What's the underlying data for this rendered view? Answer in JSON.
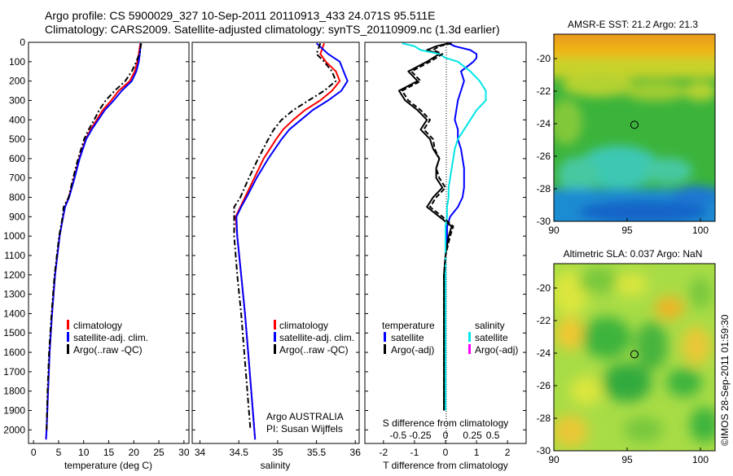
{
  "header": {
    "line1": "Argo profile: CS 5900029_327 10-Sep-2011 20110913_433 24.071S 95.511E",
    "line2": "Climatology: CARS2009. Satellite-adjusted climatology: synTS_20110909.nc (1.3d earlier)"
  },
  "colors": {
    "climatology": "#ff0000",
    "satellite": "#0000ff",
    "argo": "#000000",
    "sal_satellite": "#00e5e5",
    "sal_argo": "#ff00ff"
  },
  "chart_data": [
    {
      "type": "line",
      "id": "temperature",
      "xlabel": "temperature (deg C)",
      "xlim": [
        -1,
        31
      ],
      "ylim": [
        2070,
        0
      ],
      "xticks": [
        0,
        5,
        10,
        15,
        20,
        25,
        30
      ],
      "yticks": [
        0,
        100,
        200,
        300,
        400,
        500,
        600,
        700,
        800,
        900,
        1000,
        1100,
        1200,
        1300,
        1400,
        1500,
        1600,
        1700,
        1800,
        1900,
        2000
      ],
      "depth": [
        5,
        60,
        100,
        150,
        200,
        250,
        300,
        350,
        400,
        450,
        500,
        600,
        700,
        800,
        850,
        900,
        1000,
        1200,
        1400,
        1600,
        1800,
        2000,
        2050
      ],
      "series": [
        {
          "name": "climatology",
          "values": [
            21.3,
            21.0,
            20.7,
            20.2,
            19.2,
            17.0,
            15.5,
            13.8,
            12.6,
            11.4,
            10.4,
            9.1,
            8.1,
            7.0,
            6.3,
            5.9,
            5.2,
            4.3,
            3.7,
            3.2,
            2.9,
            2.6,
            2.5
          ]
        },
        {
          "name": "satellite-adj. clim.",
          "values": [
            21.4,
            21.2,
            21.0,
            20.5,
            19.6,
            17.6,
            16.0,
            14.2,
            12.9,
            11.6,
            10.5,
            9.2,
            8.2,
            7.1,
            6.3,
            5.9,
            5.2,
            4.3,
            3.7,
            3.2,
            2.9,
            2.6,
            2.5
          ]
        },
        {
          "name": "Argo(..raw -QC)",
          "values": [
            21.5,
            21.1,
            20.5,
            19.6,
            18.3,
            16.2,
            14.4,
            13.1,
            12.1,
            11.0,
            10.1,
            8.9,
            7.9,
            7.0,
            6.0,
            5.8,
            5.1,
            4.2,
            3.6,
            3.1,
            2.8,
            2.6,
            null
          ]
        }
      ],
      "legend": [
        "climatology",
        "satellite-adj. clim.",
        "Argo(..raw -QC)"
      ]
    },
    {
      "type": "line",
      "id": "salinity",
      "xlabel": "salinity",
      "xlim": [
        33.9,
        36.05
      ],
      "ylim": [
        2070,
        0
      ],
      "xticks": [
        34,
        34.5,
        35,
        35.5,
        36
      ],
      "depth": [
        5,
        60,
        100,
        150,
        200,
        250,
        300,
        350,
        400,
        450,
        500,
        600,
        700,
        800,
        850,
        900,
        1000,
        1200,
        1400,
        1600,
        1800,
        2000,
        2050
      ],
      "series": [
        {
          "name": "climatology",
          "values": [
            35.6,
            35.55,
            35.62,
            35.75,
            35.8,
            35.7,
            35.55,
            35.35,
            35.2,
            35.07,
            34.98,
            34.82,
            34.7,
            34.58,
            34.52,
            34.46,
            34.48,
            34.53,
            34.58,
            34.62,
            34.66,
            34.7,
            34.71
          ]
        },
        {
          "name": "satellite-adj. clim.",
          "values": [
            35.5,
            35.65,
            35.8,
            35.85,
            35.9,
            35.82,
            35.65,
            35.45,
            35.3,
            35.15,
            35.05,
            34.88,
            34.73,
            34.6,
            34.53,
            34.47,
            34.48,
            34.53,
            34.58,
            34.62,
            34.66,
            34.7,
            34.71
          ]
        },
        {
          "name": "Argo(..raw -QC)",
          "values": [
            35.55,
            35.5,
            35.6,
            35.7,
            35.75,
            35.6,
            35.4,
            35.2,
            35.05,
            34.95,
            34.88,
            34.75,
            34.63,
            34.52,
            34.44,
            34.44,
            34.44,
            34.48,
            34.53,
            34.57,
            34.61,
            34.65,
            null
          ]
        }
      ],
      "legend": [
        "climatology",
        "satellite-adj. clim.",
        "Argo(..raw -QC)"
      ],
      "annotation": [
        "Argo AUSTRALIA",
        "PI: Susan Wijffels"
      ]
    },
    {
      "type": "line",
      "id": "difference",
      "xlabel": "T difference from climatology",
      "xlabel_top": "S difference from climatology",
      "xlim": [
        -2.6,
        2.6
      ],
      "ylim": [
        2070,
        0
      ],
      "xticks": [
        -2,
        -1,
        0,
        1,
        2
      ],
      "xticklabels": [
        "-2",
        "-1",
        "0",
        "1",
        "2"
      ],
      "xticks_top": [
        -2,
        -1,
        0,
        1,
        2
      ],
      "xticklabels_top": [
        "-0.5",
        "-0.25",
        "0",
        "0.25",
        "0.5"
      ],
      "depth": [
        5,
        20,
        40,
        60,
        80,
        100,
        150,
        200,
        250,
        300,
        350,
        400,
        450,
        500,
        550,
        600,
        650,
        700,
        750,
        800,
        850,
        900,
        950,
        1000,
        1100,
        1200,
        1400,
        1600,
        1800,
        1900
      ],
      "series": [
        {
          "name": "temperature satellite",
          "values": [
            0.1,
            0.3,
            0.8,
            1.0,
            1.0,
            0.9,
            0.5,
            0.6,
            0.5,
            0.4,
            0.35,
            0.3,
            0.4,
            0.4,
            0.5,
            0.55,
            0.6,
            0.6,
            0.6,
            0.55,
            0.4,
            0.15,
            0.05,
            0.05,
            0.0,
            0.0,
            0.0,
            0.0,
            0.0,
            0.0
          ]
        },
        {
          "name": "temperature Argo(-adj)",
          "values": [
            0.1,
            -0.3,
            -0.6,
            -0.2,
            -0.4,
            -0.6,
            -1.2,
            -0.9,
            -1.5,
            -1.3,
            -0.9,
            -0.6,
            -0.8,
            -0.5,
            -0.4,
            -0.2,
            -0.3,
            -0.3,
            -0.1,
            -0.4,
            -0.6,
            -0.2,
            0.2,
            0.1,
            0.0,
            -0.05,
            -0.05,
            -0.05,
            -0.05,
            -0.05
          ]
        },
        {
          "name": "salinity satellite",
          "values": [
            -1.4,
            -1.0,
            -0.8,
            -0.2,
            0.0,
            0.4,
            0.8,
            1.1,
            1.3,
            1.3,
            1.0,
            0.8,
            0.6,
            0.4,
            0.3,
            0.25,
            0.2,
            0.15,
            0.1,
            0.1,
            0.05,
            0.05,
            0.0,
            0.0,
            0.0,
            0.0,
            0.0,
            0.0,
            0.0,
            0.0
          ]
        },
        {
          "name": "salinity Argo(-adj)",
          "values": [
            0.2,
            -0.2,
            -0.4,
            -0.1,
            -0.3,
            -0.5,
            -1.1,
            -0.8,
            -1.4,
            -1.2,
            -0.8,
            -0.5,
            -0.7,
            -0.4,
            -0.35,
            -0.2,
            -0.3,
            -0.2,
            0.0,
            -0.3,
            -0.5,
            -0.1,
            0.25,
            0.15,
            0.0,
            -0.05,
            -0.05,
            -0.05,
            -0.05,
            -0.05
          ]
        }
      ],
      "legend_headers": [
        "temperature",
        "salinity"
      ],
      "legend": [
        "satellite",
        "Argo(-adj)",
        "satellite",
        "Argo(-adj)"
      ]
    },
    {
      "type": "heatmap",
      "id": "sst",
      "title": "AMSR-E SST: 21.2 Argo: 21.3",
      "xlim": [
        90,
        101
      ],
      "ylim": [
        -30,
        -18.5
      ],
      "xticks": [
        90,
        95,
        100
      ],
      "yticks": [
        -20,
        -22,
        -24,
        -26,
        -28,
        -30
      ],
      "marker": [
        95.5,
        -24.07
      ]
    },
    {
      "type": "heatmap",
      "id": "sla",
      "title": "Altimetric SLA: 0.037 Argo: NaN",
      "xlim": [
        90,
        101
      ],
      "ylim": [
        -30,
        -18.5
      ],
      "xticks": [
        90,
        95,
        100
      ],
      "yticks": [
        -20,
        -22,
        -24,
        -26,
        -28,
        -30
      ],
      "marker": [
        95.5,
        -24.07
      ]
    }
  ],
  "watermark": "©IMOS 28-Sep-2011 01:59:30"
}
